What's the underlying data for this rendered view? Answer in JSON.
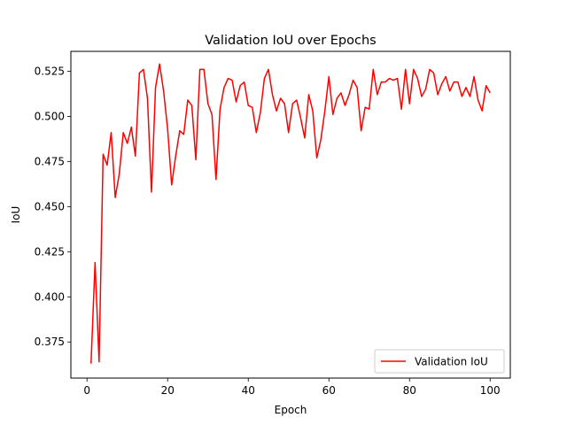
{
  "chart_data": {
    "type": "line",
    "title": "Validation IoU over Epochs",
    "xlabel": "Epoch",
    "ylabel": "IoU",
    "xlim": [
      -4,
      105
    ],
    "ylim": [
      0.355,
      0.536
    ],
    "xticks": [
      0,
      20,
      40,
      60,
      80,
      100
    ],
    "yticks": [
      0.375,
      0.4,
      0.425,
      0.45,
      0.475,
      0.5,
      0.525
    ],
    "ytick_labels": [
      "0.375",
      "0.400",
      "0.425",
      "0.450",
      "0.475",
      "0.500",
      "0.525"
    ],
    "grid": false,
    "legend_position": "lower-right",
    "series": [
      {
        "name": "Validation IoU",
        "color": "#ff0000",
        "x": [
          1,
          2,
          3,
          4,
          5,
          6,
          7,
          8,
          9,
          10,
          11,
          12,
          13,
          14,
          15,
          16,
          17,
          18,
          19,
          20,
          21,
          22,
          23,
          24,
          25,
          26,
          27,
          28,
          29,
          30,
          31,
          32,
          33,
          34,
          35,
          36,
          37,
          38,
          39,
          40,
          41,
          42,
          43,
          44,
          45,
          46,
          47,
          48,
          49,
          50,
          51,
          52,
          53,
          54,
          55,
          56,
          57,
          58,
          59,
          60,
          61,
          62,
          63,
          64,
          65,
          66,
          67,
          68,
          69,
          70,
          71,
          72,
          73,
          74,
          75,
          76,
          77,
          78,
          79,
          80,
          81,
          82,
          83,
          84,
          85,
          86,
          87,
          88,
          89,
          90,
          91,
          92,
          93,
          94,
          95,
          96,
          97,
          98,
          99,
          100
        ],
        "y": [
          0.363,
          0.419,
          0.364,
          0.479,
          0.473,
          0.491,
          0.455,
          0.468,
          0.491,
          0.485,
          0.494,
          0.478,
          0.524,
          0.526,
          0.51,
          0.458,
          0.516,
          0.529,
          0.514,
          0.493,
          0.462,
          0.478,
          0.492,
          0.49,
          0.509,
          0.506,
          0.476,
          0.526,
          0.526,
          0.507,
          0.501,
          0.465,
          0.504,
          0.516,
          0.521,
          0.52,
          0.508,
          0.517,
          0.519,
          0.506,
          0.505,
          0.491,
          0.502,
          0.521,
          0.526,
          0.512,
          0.503,
          0.51,
          0.507,
          0.491,
          0.507,
          0.509,
          0.499,
          0.488,
          0.512,
          0.503,
          0.477,
          0.487,
          0.503,
          0.522,
          0.501,
          0.51,
          0.513,
          0.506,
          0.512,
          0.52,
          0.516,
          0.492,
          0.505,
          0.504,
          0.526,
          0.512,
          0.519,
          0.519,
          0.521,
          0.52,
          0.521,
          0.504,
          0.526,
          0.507,
          0.526,
          0.521,
          0.511,
          0.515,
          0.526,
          0.524,
          0.512,
          0.518,
          0.522,
          0.514,
          0.519,
          0.519,
          0.511,
          0.516,
          0.511,
          0.522,
          0.509,
          0.503,
          0.517,
          0.513
        ]
      }
    ]
  }
}
